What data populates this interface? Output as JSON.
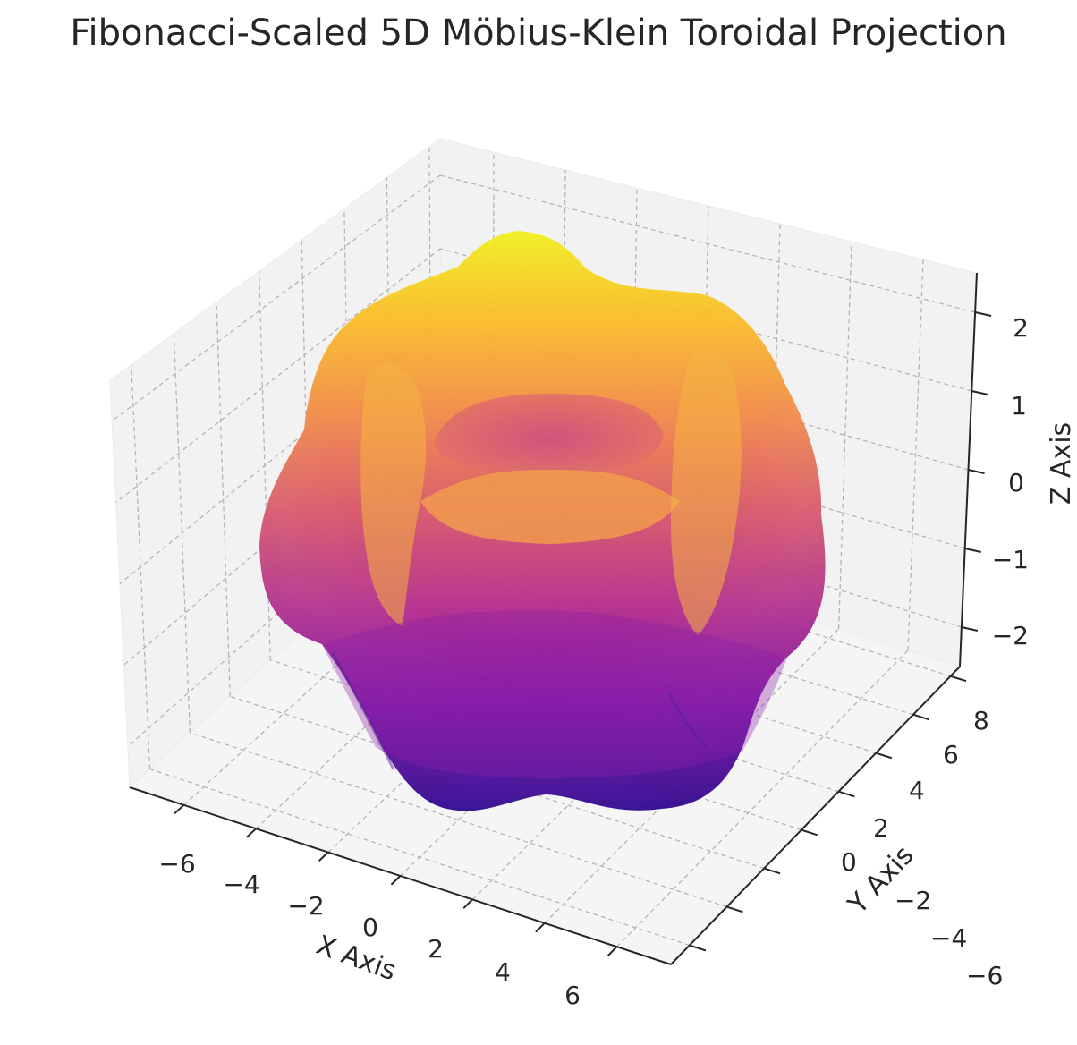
{
  "chart_data": {
    "type": "surface",
    "title": "Fibonacci-Scaled 5D Möbius-Klein Toroidal Projection",
    "xlabel": "X Axis",
    "ylabel": "Y Axis",
    "zlabel": "Z Axis",
    "x_ticks": [
      "−6",
      "−4",
      "−2",
      "0",
      "2",
      "4",
      "6"
    ],
    "y_ticks": [
      "−6",
      "−4",
      "−2",
      "0",
      "2",
      "4",
      "6",
      "8"
    ],
    "z_ticks": [
      "−2",
      "−1",
      "0",
      "1",
      "2"
    ],
    "xlim": [
      -7.5,
      7.5
    ],
    "ylim": [
      -7,
      8.5
    ],
    "zlim": [
      -2.5,
      2.5
    ],
    "grid": true,
    "colormap": "plasma",
    "pane_color": "#f2f2f2",
    "grid_color": "#b0b0b0",
    "surface": {
      "shape": "torus",
      "major_radius": 4.5,
      "minor_radius": 2.2,
      "lobes": 4,
      "z_range": [
        -2.3,
        2.5
      ]
    }
  }
}
